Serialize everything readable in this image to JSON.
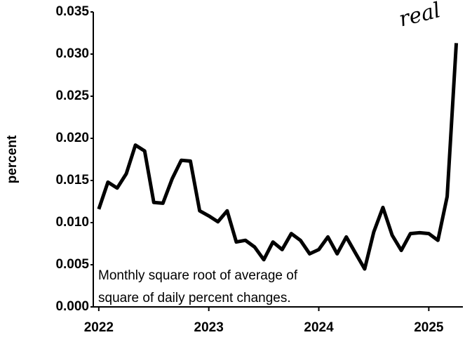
{
  "chart_data": {
    "type": "line",
    "y_label": "percent",
    "annotations": [
      "Monthly square root of average of",
      "square of daily percent changes.",
      "real"
    ],
    "x": [
      2022,
      2022.083,
      2022.167,
      2022.25,
      2022.333,
      2022.417,
      2022.5,
      2022.583,
      2022.667,
      2022.75,
      2022.833,
      2022.917,
      2023,
      2023.083,
      2023.167,
      2023.25,
      2023.333,
      2023.417,
      2023.5,
      2023.583,
      2023.667,
      2023.75,
      2023.833,
      2023.917,
      2024,
      2024.083,
      2024.167,
      2024.25,
      2024.333,
      2024.417,
      2024.5,
      2024.583,
      2024.667,
      2024.75,
      2024.833,
      2024.917,
      2025,
      2025.083,
      2025.167,
      2025.25
    ],
    "series": [
      {
        "color": "#000000",
        "values": [
          0.0116,
          0.0148,
          0.0141,
          0.0158,
          0.0192,
          0.0185,
          0.0124,
          0.0123,
          0.0152,
          0.0174,
          0.0173,
          0.0114,
          0.0108,
          0.0101,
          0.0114,
          0.0077,
          0.0079,
          0.0071,
          0.0056,
          0.0077,
          0.0068,
          0.0087,
          0.0079,
          0.0063,
          0.0068,
          0.0083,
          0.0063,
          0.0083,
          0.0064,
          0.0045,
          0.0089,
          0.0118,
          0.0085,
          0.0067,
          0.0087,
          0.0088,
          0.0087,
          0.0079,
          0.0131,
          0.0313
        ]
      }
    ],
    "xlim": [
      2021.95,
      2025.31
    ],
    "xticks": [
      2022,
      2023,
      2024,
      2025
    ],
    "ylim": [
      0,
      0.035
    ],
    "yticks": [
      {
        "value": 0,
        "label": "0.000"
      },
      {
        "value": 0.005,
        "label": "0.005"
      },
      {
        "value": 0.01,
        "label": "0.010"
      },
      {
        "value": 0.015,
        "label": "0.015"
      },
      {
        "value": 0.02,
        "label": "0.020"
      },
      {
        "value": 0.025,
        "label": "0.025"
      },
      {
        "value": 0.03,
        "label": "0.030"
      },
      {
        "value": 0.035,
        "label": "0.035"
      }
    ],
    "grid": false
  }
}
